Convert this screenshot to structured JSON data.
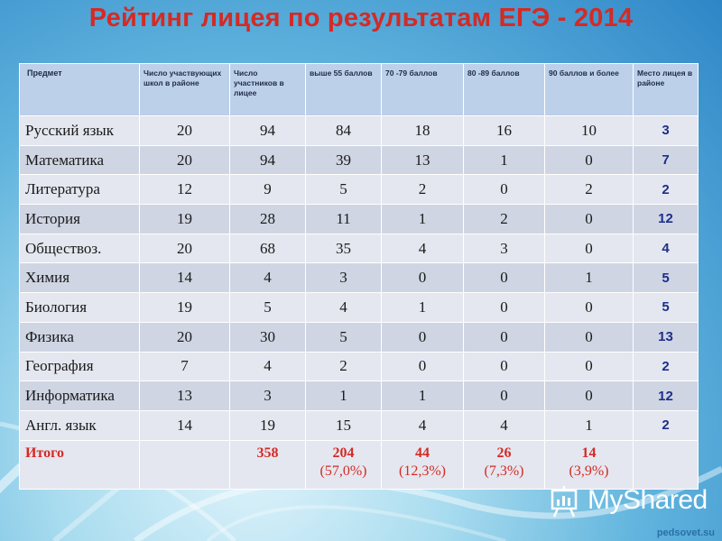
{
  "title": "Рейтинг лицея по результатам ЕГЭ  - 2014",
  "headers": [
    "Предмет",
    "Число участвующих школ в районе",
    "Число участников в лицее",
    "выше 55 баллов",
    "70 -79 баллов",
    "80 -89 баллов",
    "90 баллов и более",
    "Место лицея в районе"
  ],
  "rows": [
    {
      "subject": "Русский язык",
      "schools": "20",
      "participants": "94",
      "above55": "84",
      "r70_79": "18",
      "r80_89": "16",
      "r90": "10",
      "place": "3"
    },
    {
      "subject": "Математика",
      "schools": "20",
      "participants": "94",
      "above55": "39",
      "r70_79": "13",
      "r80_89": "1",
      "r90": "0",
      "place": "7"
    },
    {
      "subject": "Литература",
      "schools": "12",
      "participants": "9",
      "above55": "5",
      "r70_79": "2",
      "r80_89": "0",
      "r90": "2",
      "place": "2"
    },
    {
      "subject": "История",
      "schools": "19",
      "participants": "28",
      "above55": "11",
      "r70_79": "1",
      "r80_89": "2",
      "r90": "0",
      "place": "12"
    },
    {
      "subject": "Обществоз.",
      "schools": "20",
      "participants": "68",
      "above55": "35",
      "r70_79": "4",
      "r80_89": "3",
      "r90": "0",
      "place": "4"
    },
    {
      "subject": "Химия",
      "schools": "14",
      "participants": "4",
      "above55": "3",
      "r70_79": "0",
      "r80_89": "0",
      "r90": "1",
      "place": "5"
    },
    {
      "subject": "Биология",
      "schools": "19",
      "participants": "5",
      "above55": "4",
      "r70_79": "1",
      "r80_89": "0",
      "r90": "0",
      "place": "5"
    },
    {
      "subject": "Физика",
      "schools": "20",
      "participants": "30",
      "above55": "5",
      "r70_79": "0",
      "r80_89": "0",
      "r90": "0",
      "place": "13"
    },
    {
      "subject": "География",
      "schools": "7",
      "participants": "4",
      "above55": "2",
      "r70_79": "0",
      "r80_89": "0",
      "r90": "0",
      "place": "2"
    },
    {
      "subject": "Информатика",
      "schools": "13",
      "participants": "3",
      "above55": "1",
      "r70_79": "1",
      "r80_89": "0",
      "r90": "0",
      "place": "12"
    },
    {
      "subject": "Англ. язык",
      "schools": "14",
      "participants": "19",
      "above55": "15",
      "r70_79": "4",
      "r80_89": "4",
      "r90": "1",
      "place": "2"
    }
  ],
  "total": {
    "label": "Итого",
    "schools": "",
    "participants": "358",
    "above55": "204",
    "above55_pct": "(57,0%)",
    "r70_79": "44",
    "r70_79_pct": "(12,3%)",
    "r80_89": "26",
    "r80_89_pct": "(7,3%)",
    "r90": "14",
    "r90_pct": "(3,9%)",
    "place": ""
  },
  "logo": {
    "text": "MyShared",
    "icon": "presentation-board-icon"
  },
  "site": "pedsovet.su",
  "colors": {
    "title": "#d42a25",
    "place": "#1e2f8a",
    "header_bg": "#bcd0ea",
    "row_light": "#e4e7ef",
    "row_dark": "#cfd5e3"
  }
}
